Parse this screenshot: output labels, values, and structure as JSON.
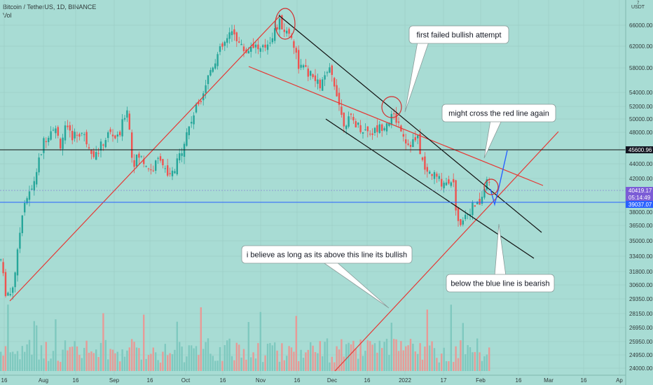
{
  "header": {
    "symbol_line": "Bitcoin / TetherUS, 1D, BINANCE",
    "volume_label": "Vol",
    "currency": "USDT",
    "currency_marker": "7"
  },
  "price_axis": {
    "ticks": [
      "66000.00",
      "62000.00",
      "58000.00",
      "54000.00",
      "52000.00",
      "50000.00",
      "48000.00",
      "44000.00",
      "42000.00",
      "38000.00",
      "36500.00",
      "35000.00",
      "33400.00",
      "31800.00",
      "30600.00",
      "29350.00",
      "28150.00",
      "26950.00",
      "25950.00",
      "24950.00",
      "24000.00"
    ],
    "badges": [
      {
        "label": "45600.96",
        "color": "#131722"
      },
      {
        "label": "40419.17",
        "color": "#7b5cd6"
      },
      {
        "label": "05:14:49",
        "color": "#7b5cd6"
      },
      {
        "label": "39037.07",
        "color": "#2962ff"
      }
    ]
  },
  "time_axis": {
    "ticks": [
      "16",
      "Aug",
      "16",
      "Sep",
      "16",
      "Oct",
      "16",
      "Nov",
      "16",
      "Dec",
      "16",
      "2022",
      "17",
      "Feb",
      "16",
      "Mar",
      "16",
      "Ap"
    ]
  },
  "annotations": {
    "callout_1": "first failed bullish attempt",
    "callout_2": "might cross the red line again",
    "callout_3": "i believe as long as its above this line its bullish",
    "callout_4": "below the blue line is bearish"
  },
  "levels": {
    "support_black": "45600.96",
    "blue_line": "39037.07",
    "current_price": "40419.17"
  },
  "colors": {
    "background": "#a8dcd4",
    "bull": "#26a69a",
    "bear": "#ef5350",
    "trendline_red": "#e53935",
    "channel_black": "#111111",
    "blue": "#2962ff"
  }
}
